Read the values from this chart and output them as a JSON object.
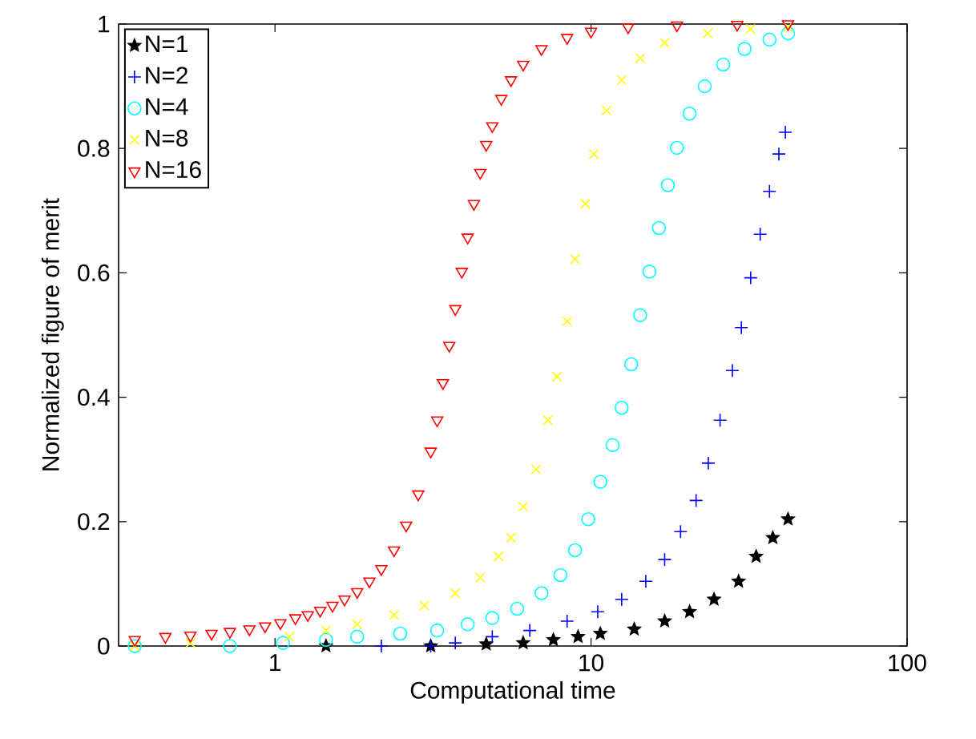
{
  "chart_data": {
    "type": "scatter",
    "xlabel": "Computational time",
    "ylabel": "Normalized figure of merit",
    "log": "x",
    "xlim": [
      0.32,
      100
    ],
    "ylim": [
      0,
      1
    ],
    "xticks": [
      1,
      10,
      100
    ],
    "yticks": [
      0,
      0.2,
      0.4,
      0.6,
      0.8,
      1
    ],
    "grid": false,
    "legend": "top left",
    "series": [
      {
        "name": "N=1",
        "color": "#000000",
        "marker": "star",
        "x": [
          1.45,
          3.11,
          4.66,
          6.1,
          7.6,
          9.1,
          10.7,
          13.7,
          17.1,
          20.5,
          24.5,
          29.3,
          33.3,
          37.6,
          42
        ],
        "values": [
          0,
          0,
          0.003,
          0.005,
          0.01,
          0.015,
          0.02,
          0.027,
          0.04,
          0.055,
          0.075,
          0.104,
          0.144,
          0.174,
          0.204
        ]
      },
      {
        "name": "N=2",
        "color": "#0000ff",
        "marker": "plus",
        "x": [
          2.17,
          3.11,
          3.72,
          4.87,
          6.4,
          8.4,
          10.5,
          12.5,
          14.9,
          17.1,
          19.2,
          21.5,
          23.5,
          25.6,
          28,
          29.9,
          32,
          34.3,
          36.7,
          39.3,
          41.2
        ],
        "values": [
          0,
          0,
          0.005,
          0.015,
          0.025,
          0.04,
          0.055,
          0.075,
          0.104,
          0.139,
          0.184,
          0.234,
          0.294,
          0.363,
          0.443,
          0.512,
          0.592,
          0.662,
          0.731,
          0.791,
          0.826
        ]
      },
      {
        "name": "N=4",
        "color": "#00ffff",
        "marker": "circle",
        "x": [
          0.36,
          0.72,
          1.06,
          1.45,
          1.82,
          2.49,
          3.26,
          4.07,
          4.87,
          5.84,
          6.97,
          8,
          8.9,
          9.8,
          10.7,
          11.7,
          12.5,
          13.4,
          14.3,
          15.3,
          16.4,
          17.5,
          18.7,
          20.5,
          22.9,
          26.2,
          30.6,
          36.7,
          42
        ],
        "values": [
          0,
          0,
          0.005,
          0.01,
          0.015,
          0.02,
          0.025,
          0.035,
          0.045,
          0.06,
          0.085,
          0.114,
          0.154,
          0.204,
          0.264,
          0.323,
          0.383,
          0.453,
          0.532,
          0.602,
          0.672,
          0.741,
          0.801,
          0.856,
          0.9,
          0.935,
          0.96,
          0.975,
          0.985
        ]
      },
      {
        "name": "N=8",
        "color": "#ffff00",
        "marker": "cross",
        "x": [
          0.36,
          0.54,
          1.11,
          1.45,
          1.82,
          2.38,
          2.97,
          3.72,
          4.46,
          5.1,
          5.58,
          6.1,
          6.7,
          7.3,
          7.8,
          8.4,
          8.9,
          9.6,
          10.2,
          11.2,
          12.5,
          14.3,
          17.1,
          23.4,
          32,
          42
        ],
        "values": [
          0,
          0.005,
          0.015,
          0.025,
          0.035,
          0.05,
          0.065,
          0.085,
          0.11,
          0.144,
          0.174,
          0.224,
          0.284,
          0.363,
          0.433,
          0.522,
          0.622,
          0.711,
          0.791,
          0.861,
          0.91,
          0.945,
          0.97,
          0.985,
          0.992,
          0.995
        ]
      },
      {
        "name": "N=16",
        "color": "#ff0000",
        "marker": "triangle",
        "x": [
          0.36,
          0.45,
          0.54,
          0.63,
          0.72,
          0.83,
          0.93,
          1.04,
          1.16,
          1.27,
          1.39,
          1.52,
          1.66,
          1.82,
          1.99,
          2.17,
          2.38,
          2.6,
          2.84,
          3.11,
          3.26,
          3.4,
          3.56,
          3.72,
          3.9,
          4.07,
          4.26,
          4.46,
          4.66,
          4.87,
          5.2,
          5.58,
          6.1,
          6.97,
          8.4,
          10,
          13.1,
          18.7,
          29,
          42
        ],
        "values": [
          0.01,
          0.015,
          0.017,
          0.02,
          0.023,
          0.027,
          0.032,
          0.037,
          0.045,
          0.05,
          0.057,
          0.065,
          0.075,
          0.087,
          0.104,
          0.124,
          0.154,
          0.194,
          0.244,
          0.313,
          0.363,
          0.423,
          0.483,
          0.542,
          0.602,
          0.657,
          0.711,
          0.761,
          0.806,
          0.836,
          0.88,
          0.91,
          0.935,
          0.96,
          0.978,
          0.988,
          0.995,
          0.998,
          0.999,
          1
        ]
      }
    ]
  }
}
